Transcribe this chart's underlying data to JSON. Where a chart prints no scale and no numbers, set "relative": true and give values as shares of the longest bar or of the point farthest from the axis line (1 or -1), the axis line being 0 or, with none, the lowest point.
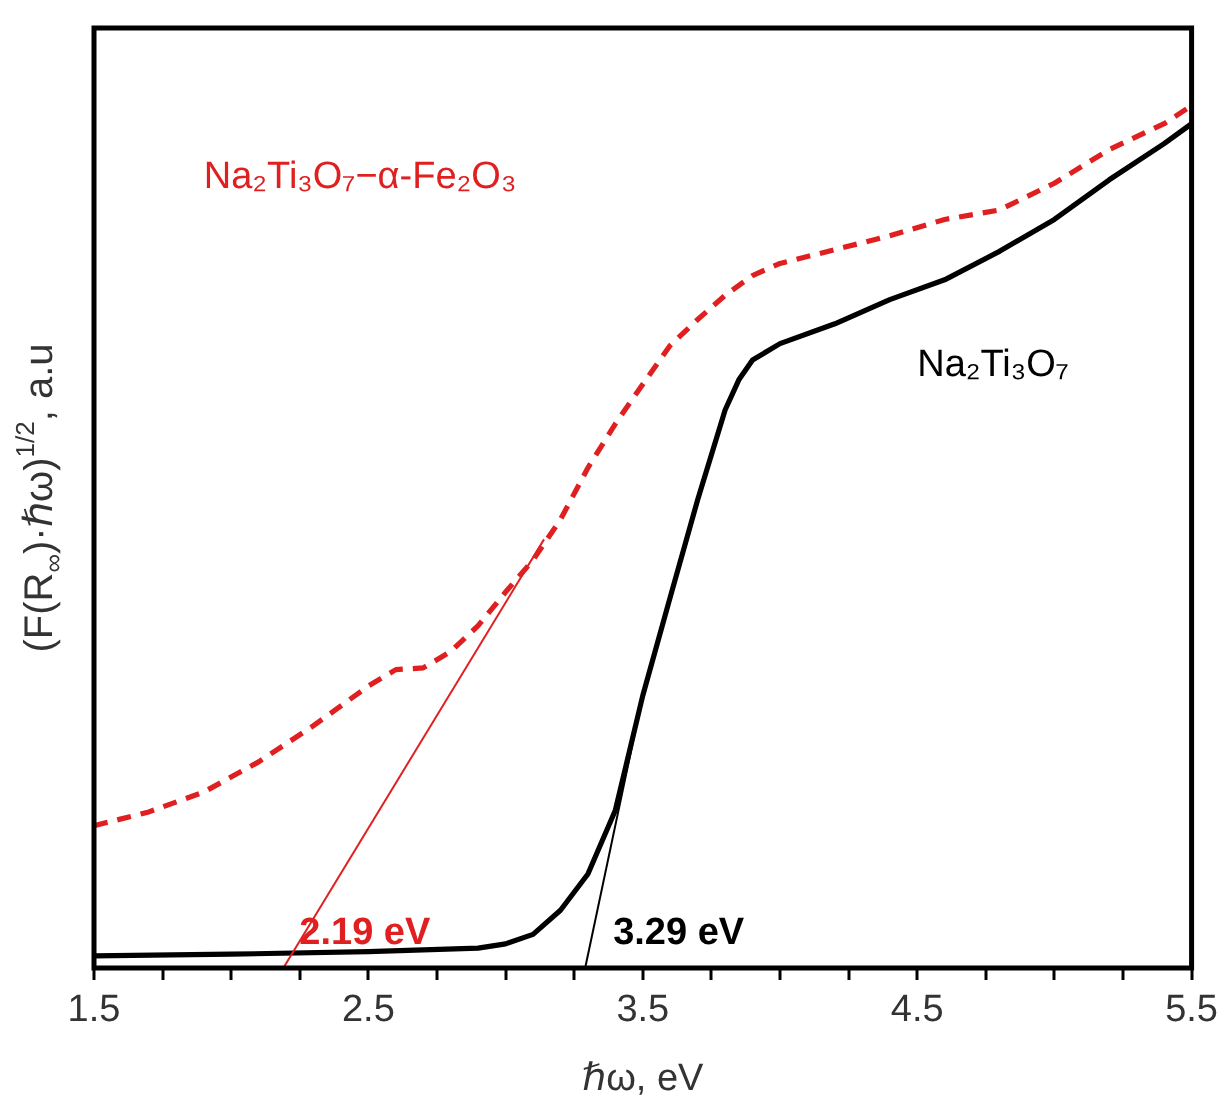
{
  "chart_data": {
    "type": "line",
    "relative": true,
    "xlabel": "ℏω, eV",
    "ylabel": "(F(R$_{∞}$)·ℏω)$^{1/2}$, a.u",
    "xlim": [
      1.5,
      5.5
    ],
    "xticks": [
      1.5,
      {
        "value": 1.75,
        "label": null
      },
      {
        "value": 2,
        "label": null
      },
      {
        "value": 2.25,
        "label": null
      },
      2.5,
      {
        "value": 2.75,
        "label": null
      },
      {
        "value": 3,
        "label": null
      },
      {
        "value": 3.25,
        "label": null
      },
      3.5,
      {
        "value": 3.75,
        "label": null
      },
      {
        "value": 4,
        "label": null
      },
      {
        "value": 4.25,
        "label": null
      },
      4.5,
      {
        "value": 4.75,
        "label": null
      },
      {
        "value": 5,
        "label": null
      },
      {
        "value": 5.25,
        "label": null
      },
      5.5
    ],
    "grid": false,
    "legend": false,
    "marker": "none",
    "series": [
      {
        "name": "Na₂Ti₃O₇−α-Fe₂O₃",
        "color": "#e02020",
        "line_style": "dashed",
        "x": [
          1.5,
          1.7,
          1.9,
          2.1,
          2.3,
          2.5,
          2.6,
          2.7,
          2.8,
          2.9,
          3.0,
          3.1,
          3.2,
          3.3,
          3.4,
          3.5,
          3.6,
          3.7,
          3.8,
          3.9,
          4.0,
          4.2,
          4.4,
          4.6,
          4.8,
          5.0,
          5.2,
          5.4,
          5.5
        ],
        "values": [
          0.165,
          0.181,
          0.204,
          0.239,
          0.281,
          0.327,
          0.346,
          0.348,
          0.367,
          0.397,
          0.436,
          0.473,
          0.52,
          0.58,
          0.631,
          0.677,
          0.722,
          0.752,
          0.78,
          0.803,
          0.817,
          0.833,
          0.849,
          0.868,
          0.879,
          0.91,
          0.949,
          0.979,
          1.0
        ]
      },
      {
        "name": "Na₂Ti₃O₇",
        "color": "#000000",
        "line_style": "solid",
        "x": [
          1.5,
          2.0,
          2.5,
          2.9,
          3.0,
          3.1,
          3.2,
          3.3,
          3.4,
          3.5,
          3.6,
          3.7,
          3.8,
          3.85,
          3.9,
          4.0,
          4.2,
          4.4,
          4.6,
          4.8,
          5.0,
          5.2,
          5.4,
          5.5
        ],
        "values": [
          0.014,
          0.016,
          0.019,
          0.023,
          0.028,
          0.039,
          0.067,
          0.109,
          0.183,
          0.316,
          0.43,
          0.543,
          0.647,
          0.682,
          0.705,
          0.724,
          0.747,
          0.775,
          0.798,
          0.831,
          0.868,
          0.914,
          0.956,
          0.979
        ]
      },
      {
        "type": "line",
        "color": "#e02020",
        "line_style": "solid",
        "x": [
          2.19,
          3.14
        ],
        "values": [
          0,
          0.497
        ]
      },
      {
        "type": "line",
        "color": "#000000",
        "line_style": "solid",
        "x": [
          3.29,
          3.5
        ],
        "values": [
          0,
          0.316
        ]
      }
    ],
    "annotations": [
      {
        "text": "2.19 eV",
        "x": 2.19,
        "y": 0
      },
      {
        "text": "3.29 eV",
        "x": 3.29,
        "y": 0
      }
    ]
  }
}
